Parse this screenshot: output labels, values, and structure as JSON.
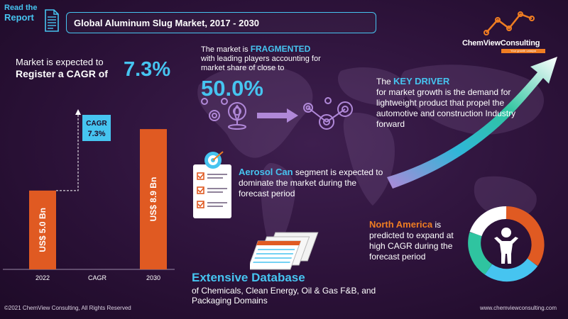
{
  "header": {
    "read_line1": "Read the",
    "read_line2": "Report",
    "title": "Global Aluminum Slug Market, 2017  - 2030"
  },
  "logo": {
    "name": "ChemViewConsulting",
    "tagline": "Your growth catalyst"
  },
  "cagr_block": {
    "line1": "Market is expected to",
    "line2": "Register a CAGR of",
    "value": "7.3%"
  },
  "chart_data": {
    "type": "bar",
    "categories": [
      "2022",
      "CAGR",
      "2030"
    ],
    "values": [
      5.0,
      null,
      8.9
    ],
    "bar_labels": [
      "US$ 5.0 Bn",
      "",
      "US$ 8.9 Bn"
    ],
    "annotation": {
      "label": "CAGR",
      "value": "7.3%"
    },
    "unit": "US$ Bn",
    "ylim": [
      0,
      10
    ],
    "grid": false,
    "colors": {
      "bar": "#e05a22",
      "callout": "#46c4f0"
    }
  },
  "fragmented": {
    "prefix": "The market is ",
    "highlight": "FRAGMENTED",
    "rest": "with leading players accounting for market share of close to",
    "value": "50.0%"
  },
  "driver": {
    "prefix": "The ",
    "highlight": "KEY DRIVER",
    "rest": "for market growth is the demand for lightweight product that propel the automotive and construction Industry forward"
  },
  "aerosol": {
    "highlight": "Aerosol Can",
    "rest": " segment is expected to dominate the market during the forecast period"
  },
  "region": {
    "highlight": "North America",
    "rest": "is predicted to expand at high CAGR during the forecast period"
  },
  "database": {
    "title": "Extensive Database",
    "subtitle": "of Chemicals, Clean Energy, Oil & Gas F&B, and Packaging Domains"
  },
  "footer": {
    "copyright": "©2021  ChemView  Consulting,  All Rights Reserved",
    "website": "www.chemviewconsulting.com"
  },
  "icons": [
    "document-icon",
    "growth-line-icon",
    "location-pin-icon",
    "checklist-icon",
    "target-icon",
    "person-icon",
    "documents-stack-icon",
    "growth-arrow-icon"
  ],
  "colors": {
    "accent": "#46c4f0",
    "orange": "#ef7d22",
    "background": "#2c1239",
    "purple": "#b088d8"
  }
}
